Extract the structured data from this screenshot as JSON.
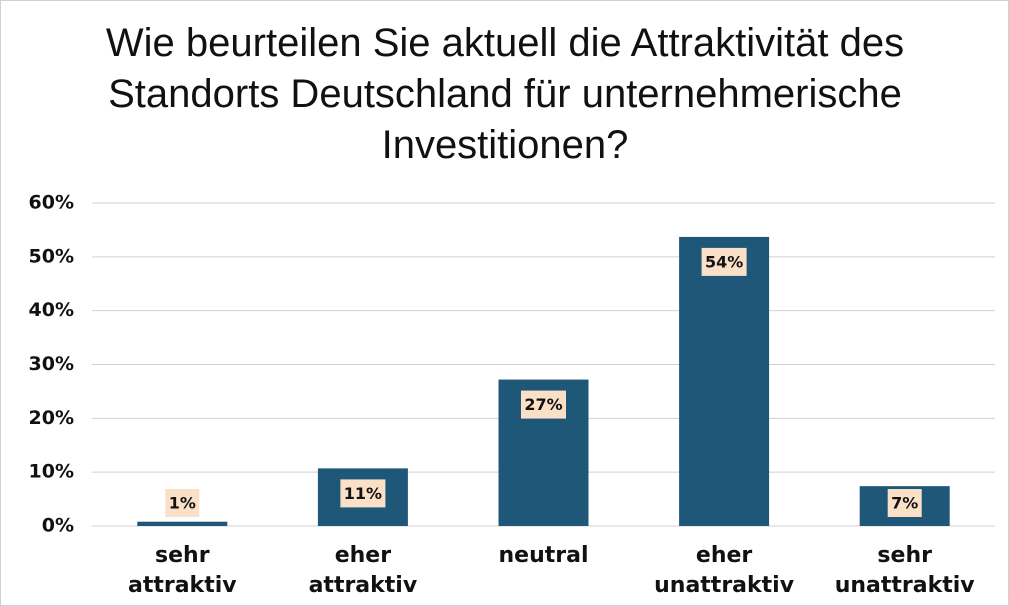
{
  "chart_data": {
    "type": "bar",
    "title": "Wie beurteilen Sie aktuell die Attraktivität des Standorts Deutschland für unternehmerische Investitionen?",
    "categories": [
      "sehr attraktiv",
      "eher attraktiv",
      "neutral",
      "eher unattraktiv",
      "sehr unattraktiv"
    ],
    "values": [
      0.8,
      10.7,
      27.2,
      53.7,
      7.4
    ],
    "value_labels": [
      "1%",
      "11%",
      "27%",
      "54%",
      "7%"
    ],
    "color": "#1f5779",
    "ylim": [
      0,
      60
    ],
    "yticks": [
      {
        "value": 0,
        "label": "0%"
      },
      {
        "value": 10,
        "label": "10%"
      },
      {
        "value": 20,
        "label": "20%"
      },
      {
        "value": 30,
        "label": "30%"
      },
      {
        "value": 40,
        "label": "40%"
      },
      {
        "value": 50,
        "label": "50%"
      },
      {
        "value": 60,
        "label": "60%"
      }
    ],
    "grid": true
  }
}
